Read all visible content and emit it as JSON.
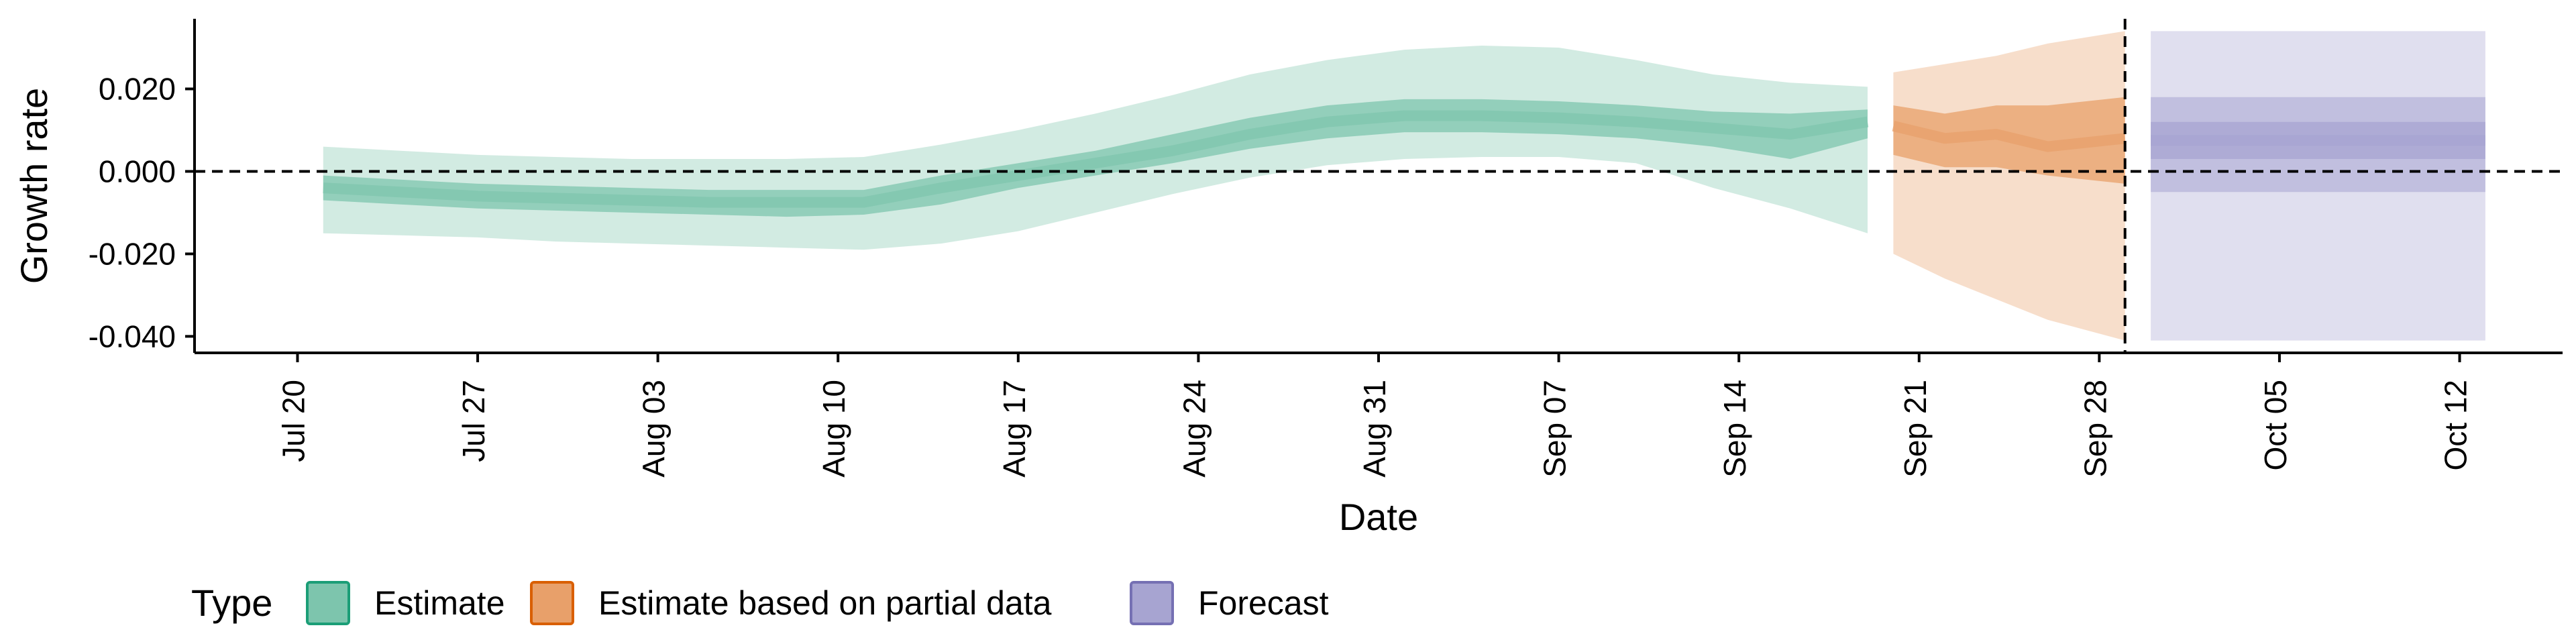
{
  "chart_data": {
    "type": "area",
    "xlabel": "Date",
    "ylabel": "Growth rate",
    "y_ticks": [
      "-0.040",
      "-0.020",
      "0.000",
      "0.020"
    ],
    "y_tick_values": [
      -0.04,
      -0.02,
      0.0,
      0.02
    ],
    "ylim": [
      -0.044,
      0.037
    ],
    "xlim": [
      "2020-07-16",
      "2020-10-16"
    ],
    "x_ticks": [
      "Jul 20",
      "Jul 27",
      "Aug 03",
      "Aug 10",
      "Aug 17",
      "Aug 24",
      "Aug 31",
      "Sep 07",
      "Sep 14",
      "Sep 21",
      "Sep 28",
      "Oct 05",
      "Oct 12"
    ],
    "x_tick_dates": [
      "2020-07-20",
      "2020-07-27",
      "2020-08-03",
      "2020-08-10",
      "2020-08-17",
      "2020-08-24",
      "2020-08-31",
      "2020-09-07",
      "2020-09-14",
      "2020-09-21",
      "2020-09-28",
      "2020-10-05",
      "2020-10-12"
    ],
    "reference_lines": {
      "horizontal_y": 0.0,
      "vertical_date": "2020-09-29"
    },
    "grid": false,
    "legend": {
      "title": "Type",
      "position": "bottom-left",
      "entries": [
        "Estimate",
        "Estimate based on partial data",
        "Forecast"
      ]
    },
    "colors": {
      "Estimate": "#1b9e77",
      "Estimate based on partial data": "#d95f02",
      "Forecast": "#7570b3",
      "estimate_fill": "#7dc5ad",
      "partial_fill": "#e8a06a",
      "forecast_fill": "#a7a4d1"
    },
    "series": [
      {
        "name": "Estimate",
        "x": [
          "2020-07-21",
          "2020-07-24",
          "2020-07-27",
          "2020-07-30",
          "2020-08-02",
          "2020-08-05",
          "2020-08-08",
          "2020-08-11",
          "2020-08-14",
          "2020-08-17",
          "2020-08-20",
          "2020-08-23",
          "2020-08-26",
          "2020-08-29",
          "2020-09-01",
          "2020-09-04",
          "2020-09-07",
          "2020-09-10",
          "2020-09-13",
          "2020-09-16",
          "2020-09-19"
        ],
        "median": [
          -0.004,
          -0.005,
          -0.006,
          -0.0065,
          -0.007,
          -0.0075,
          -0.0075,
          -0.0075,
          -0.004,
          -0.001,
          0.002,
          0.005,
          0.009,
          0.012,
          0.0135,
          0.0135,
          0.013,
          0.012,
          0.0105,
          0.009,
          0.012
        ],
        "inner_lower": [
          -0.007,
          -0.008,
          -0.009,
          -0.0095,
          -0.01,
          -0.0105,
          -0.011,
          -0.0105,
          -0.008,
          -0.004,
          -0.001,
          0.002,
          0.0055,
          0.008,
          0.0095,
          0.0095,
          0.009,
          0.008,
          0.006,
          0.003,
          0.008
        ],
        "inner_upper": [
          -0.001,
          -0.002,
          -0.003,
          -0.0035,
          -0.004,
          -0.0045,
          -0.0045,
          -0.0045,
          -0.001,
          0.002,
          0.005,
          0.009,
          0.013,
          0.016,
          0.0175,
          0.0175,
          0.017,
          0.016,
          0.0145,
          0.014,
          0.015
        ],
        "outer_lower": [
          -0.015,
          -0.0155,
          -0.016,
          -0.017,
          -0.0175,
          -0.018,
          -0.0185,
          -0.019,
          -0.0175,
          -0.0145,
          -0.01,
          -0.0055,
          -0.0015,
          0.0015,
          0.003,
          0.0035,
          0.0035,
          0.002,
          -0.004,
          -0.009,
          -0.015
        ],
        "outer_upper": [
          0.006,
          0.005,
          0.004,
          0.0035,
          0.003,
          0.003,
          0.003,
          0.0035,
          0.0065,
          0.01,
          0.014,
          0.0185,
          0.0235,
          0.027,
          0.0295,
          0.0305,
          0.03,
          0.027,
          0.0235,
          0.0215,
          0.0205
        ]
      },
      {
        "name": "Estimate based on partial data",
        "x": [
          "2020-09-20",
          "2020-09-22",
          "2020-09-24",
          "2020-09-26",
          "2020-09-29"
        ],
        "median": [
          0.011,
          0.008,
          0.009,
          0.006,
          0.008
        ],
        "inner_lower": [
          0.004,
          0.001,
          0.001,
          -0.001,
          -0.003
        ],
        "inner_upper": [
          0.016,
          0.014,
          0.016,
          0.016,
          0.018
        ],
        "outer_lower": [
          -0.02,
          -0.026,
          -0.031,
          -0.036,
          -0.041
        ],
        "outer_upper": [
          0.024,
          0.026,
          0.028,
          0.031,
          0.034
        ]
      },
      {
        "name": "Forecast",
        "x": [
          "2020-09-30",
          "2020-10-13"
        ],
        "median": [
          0.0075,
          0.0075
        ],
        "inner_lower": [
          0.003,
          0.003
        ],
        "inner_upper": [
          0.012,
          0.012
        ],
        "mid_lower": [
          -0.005,
          -0.005
        ],
        "mid_upper": [
          0.018,
          0.018
        ],
        "outer_lower": [
          -0.041,
          -0.041
        ],
        "outer_upper": [
          0.034,
          0.034
        ]
      }
    ]
  }
}
